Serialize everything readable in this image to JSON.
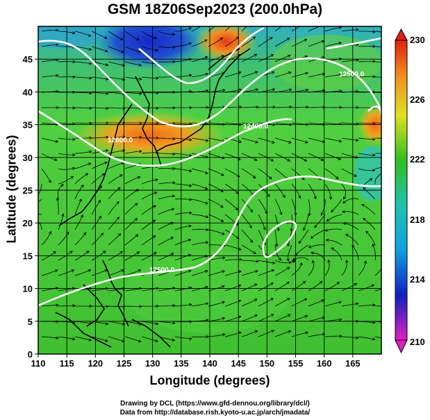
{
  "title": "GSM 18Z06Sep2023 (200.0hPa)",
  "x_axis_label": "Longitude (degrees)",
  "y_axis_label": "Latitude  (degrees)",
  "x_ticks": [
    "110",
    "115",
    "120",
    "125",
    "130",
    "135",
    "140",
    "145",
    "150",
    "155",
    "160",
    "165"
  ],
  "y_ticks": [
    "0",
    "5",
    "10",
    "15",
    "20",
    "25",
    "30",
    "35",
    "40",
    "45"
  ],
  "colorbar_ticks": [
    "230",
    "226",
    "222",
    "218",
    "214",
    "210"
  ],
  "credit_line1": "Drawing by DCL (https://www.gfd-dennou.org/library/dcl/)",
  "credit_line2": "Data from http://database.rish.kyoto-u.ac.jp/arch/jmadata/",
  "contour_labels": [
    "12500.0",
    "12400.0",
    "12600.0",
    "12500.0"
  ],
  "colors": {
    "high": "#e03010",
    "mid": "#30c020",
    "low": "#1020c0",
    "min": "#e020c0"
  }
}
